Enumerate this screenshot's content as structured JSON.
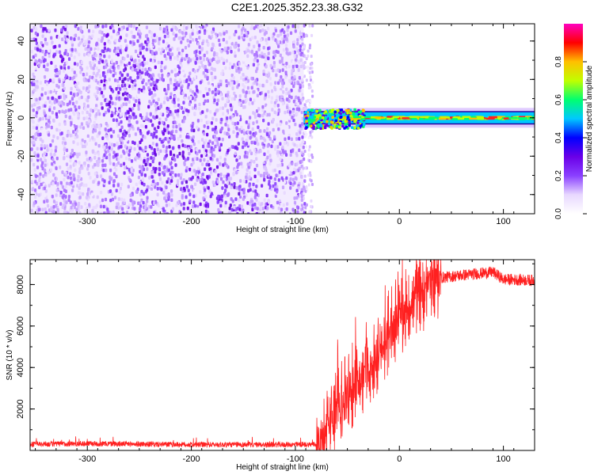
{
  "title": "C2E1.2025.352.23.38.G32",
  "chart_data": [
    {
      "type": "heatmap",
      "name": "spectrogram",
      "xlabel": "Height of straight line (km)",
      "ylabel": "Frequency (Hz)",
      "xlim": [
        -355,
        130
      ],
      "ylim": [
        -50,
        49
      ],
      "xticks": [
        -300,
        -200,
        -100,
        0,
        100
      ],
      "yticks": [
        -40,
        -20,
        0,
        20,
        40
      ],
      "noise_region": {
        "x": [
          -355,
          -92
        ],
        "y": [
          -50,
          49
        ]
      },
      "signal_band": {
        "x": [
          -92,
          130
        ],
        "center_frequency": 0,
        "half_width": 3.5
      },
      "colorbar": {
        "label": "Normalized spectral amplitude",
        "range": [
          0,
          1
        ],
        "ticks": [
          0.0,
          0.2,
          0.4,
          0.6,
          0.8
        ],
        "colors": [
          "#ffffff",
          "#e8d8ff",
          "#8a40ff",
          "#6a00e8",
          "#0000ff",
          "#00c8ff",
          "#00ff70",
          "#c0ff00",
          "#ffc000",
          "#ff0000",
          "#ff00c0"
        ]
      }
    },
    {
      "type": "line",
      "name": "snr",
      "xlabel": "Height of straight line (km)",
      "ylabel": "SNR (10 * v/v)",
      "xlim": [
        -355,
        130
      ],
      "ylim": [
        0,
        9200
      ],
      "xticks": [
        -300,
        -200,
        -100,
        0,
        100
      ],
      "yticks": [
        2000,
        4000,
        6000,
        8000
      ],
      "color": "#ff2020",
      "profile": {
        "x": [
          -355,
          -300,
          -200,
          -100,
          -75,
          -60,
          -40,
          -20,
          0,
          20,
          35,
          60,
          90,
          100,
          130
        ],
        "y": [
          300,
          330,
          280,
          280,
          300,
          2000,
          3300,
          4500,
          6300,
          7700,
          8300,
          8450,
          8600,
          8250,
          8200
        ]
      }
    }
  ]
}
